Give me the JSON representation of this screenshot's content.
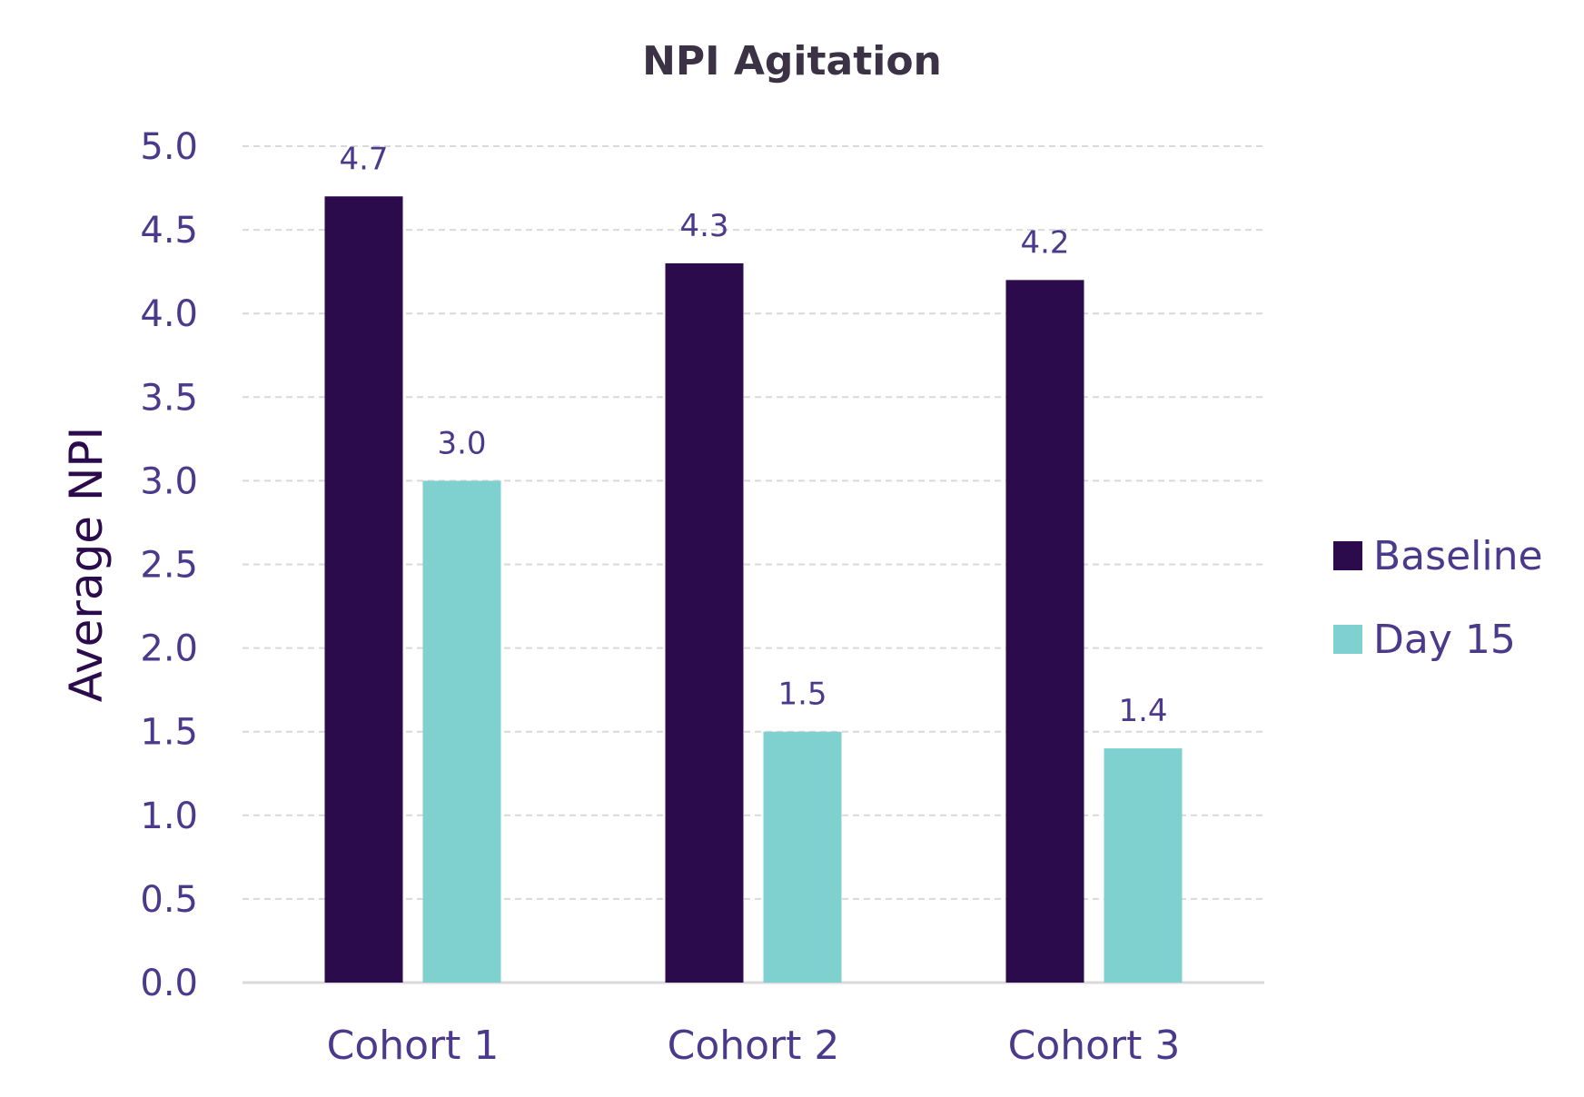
{
  "chart_data": {
    "type": "bar",
    "title": "NPI Agitation",
    "xlabel": "",
    "ylabel": "Average NPI",
    "categories": [
      "Cohort 1",
      "Cohort 2",
      "Cohort 3"
    ],
    "series": [
      {
        "name": "Baseline",
        "values": [
          4.7,
          4.3,
          4.2
        ],
        "color": "#2c0b4d"
      },
      {
        "name": "Day 15",
        "values": [
          3.0,
          1.5,
          1.4
        ],
        "color": "#7fd1cf"
      }
    ],
    "data_labels": [
      [
        "4.7",
        "4.3",
        "4.2"
      ],
      [
        "3.0",
        "1.5",
        "1.4"
      ]
    ],
    "ylim": [
      0,
      5
    ],
    "yticks": [
      "0.0",
      "0.5",
      "1.0",
      "1.5",
      "2.0",
      "2.5",
      "3.0",
      "3.5",
      "4.0",
      "4.5",
      "5.0"
    ],
    "grid": true,
    "grid_style": "dashed",
    "legend_position": "right",
    "colors": {
      "text": "#4b3a8c",
      "title": "#3b3245",
      "ylabel": "#2c0b4d",
      "grid": "#d9d9d9",
      "axis": "#d9d9d9"
    }
  }
}
